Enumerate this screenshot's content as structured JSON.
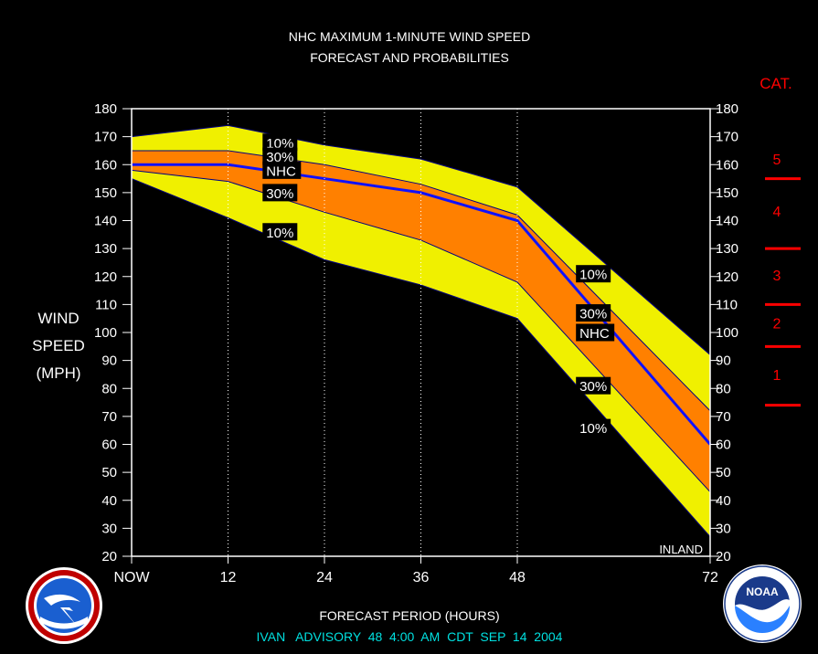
{
  "chart_data": {
    "type": "area",
    "title": "NHC MAXIMUM 1-MINUTE WIND SPEED",
    "subtitle": "FORECAST AND PROBABILITIES",
    "ylabel": [
      "WIND",
      "SPEED",
      "(MPH)"
    ],
    "xlabel": "FORECAST PERIOD (HOURS)",
    "ylim": [
      20,
      180
    ],
    "xlim": [
      0,
      72
    ],
    "y_ticks": [
      20,
      30,
      40,
      50,
      60,
      70,
      80,
      90,
      100,
      110,
      120,
      130,
      140,
      150,
      160,
      170,
      180
    ],
    "x_ticks": [
      {
        "x": 0,
        "label": "NOW"
      },
      {
        "x": 12,
        "label": "12"
      },
      {
        "x": 24,
        "label": "24"
      },
      {
        "x": 36,
        "label": "36"
      },
      {
        "x": 48,
        "label": "48"
      },
      {
        "x": 72,
        "label": "72"
      }
    ],
    "x": [
      0,
      12,
      24,
      36,
      48,
      72
    ],
    "series": [
      {
        "name": "10%",
        "values": [
          170,
          174,
          167,
          162,
          152,
          92
        ]
      },
      {
        "name": "30%",
        "values": [
          165,
          165,
          160,
          153,
          142,
          72
        ]
      },
      {
        "name": "NHC",
        "values": [
          160,
          160,
          155,
          150,
          140,
          60
        ]
      },
      {
        "name": "30%",
        "values": [
          158,
          154,
          143,
          133,
          118,
          43
        ]
      },
      {
        "name": "10%",
        "values": [
          155,
          141,
          126,
          117,
          105,
          27
        ]
      }
    ],
    "band_colors": {
      "outer": "#f0f000",
      "inner": "#ff8000",
      "forecast_line": "#1010ff",
      "band_edge": "#000080"
    },
    "annotations": [
      {
        "text": "10%",
        "x": 16.3,
        "y": 168
      },
      {
        "text": "30%",
        "x": 16.3,
        "y": 163
      },
      {
        "text": "NHC",
        "x": 16.3,
        "y": 158
      },
      {
        "text": "30%",
        "x": 16.3,
        "y": 150
      },
      {
        "text": "10%",
        "x": 16.3,
        "y": 136
      },
      {
        "text": "10%",
        "x": 55.3,
        "y": 121
      },
      {
        "text": "30%",
        "x": 55.3,
        "y": 107
      },
      {
        "text": "NHC",
        "x": 55.3,
        "y": 100
      },
      {
        "text": "30%",
        "x": 55.3,
        "y": 81
      },
      {
        "text": "10%",
        "x": 55.3,
        "y": 66
      }
    ],
    "inland_label": "INLAND",
    "category_scale": {
      "title": "CAT.",
      "categories": [
        {
          "label": "5",
          "mid": 162
        },
        {
          "label": "4",
          "mid": 143.5
        },
        {
          "label": "3",
          "mid": 120.5
        },
        {
          "label": "2",
          "mid": 103.5
        },
        {
          "label": "1",
          "mid": 85
        }
      ],
      "boundaries": [
        155,
        130,
        110,
        95,
        74
      ]
    },
    "advisory": "IVAN   ADVISORY  48  4:00  AM  CDT  SEP  14  2004"
  }
}
